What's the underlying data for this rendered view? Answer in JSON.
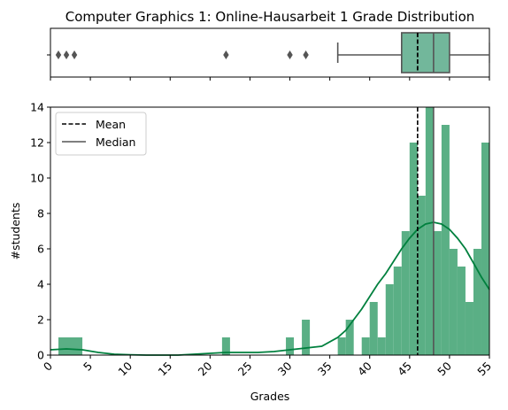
{
  "chart_data": [
    {
      "type": "box",
      "title": "Computer Graphics 1: Online-Hausarbeit 1 Grade Distribution",
      "xlim": [
        0,
        55
      ],
      "box": {
        "whisker_low": 36,
        "q1": 44,
        "median": 48,
        "mean": 46,
        "q3": 50,
        "whisker_high": 55
      },
      "outliers": [
        1,
        2,
        3,
        22,
        30,
        32
      ],
      "colors": {
        "box": "#72b79b",
        "lines": "#555555",
        "mean": "#000000"
      }
    },
    {
      "type": "histogram",
      "xlabel": "Grades",
      "ylabel": "#students",
      "xlim": [
        0,
        55
      ],
      "ylim": [
        0,
        14
      ],
      "xticks": [
        0,
        5,
        10,
        15,
        20,
        25,
        30,
        35,
        40,
        45,
        50,
        55
      ],
      "yticks": [
        0,
        2,
        4,
        6,
        8,
        10,
        12,
        14
      ],
      "bins": [
        {
          "x0": 1,
          "x1": 4,
          "count": 1
        },
        {
          "x0": 21.5,
          "x1": 22.5,
          "count": 1
        },
        {
          "x0": 29.5,
          "x1": 30.5,
          "count": 1
        },
        {
          "x0": 31.5,
          "x1": 32.5,
          "count": 2
        },
        {
          "x0": 36,
          "x1": 37,
          "count": 1
        },
        {
          "x0": 37,
          "x1": 38,
          "count": 2
        },
        {
          "x0": 39,
          "x1": 40,
          "count": 1
        },
        {
          "x0": 40,
          "x1": 41,
          "count": 3
        },
        {
          "x0": 41,
          "x1": 42,
          "count": 1
        },
        {
          "x0": 42,
          "x1": 43,
          "count": 4
        },
        {
          "x0": 43,
          "x1": 44,
          "count": 5
        },
        {
          "x0": 44,
          "x1": 45,
          "count": 7
        },
        {
          "x0": 45,
          "x1": 46,
          "count": 12
        },
        {
          "x0": 46,
          "x1": 47,
          "count": 9
        },
        {
          "x0": 47,
          "x1": 48,
          "count": 14
        },
        {
          "x0": 48,
          "x1": 49,
          "count": 7
        },
        {
          "x0": 49,
          "x1": 50,
          "count": 13
        },
        {
          "x0": 50,
          "x1": 51,
          "count": 6
        },
        {
          "x0": 51,
          "x1": 52,
          "count": 5
        },
        {
          "x0": 52,
          "x1": 53,
          "count": 3
        },
        {
          "x0": 53,
          "x1": 54,
          "count": 6
        },
        {
          "x0": 54,
          "x1": 55,
          "count": 12
        }
      ],
      "kde": {
        "x": [
          0,
          2,
          4,
          6,
          8,
          10,
          12,
          14,
          16,
          18,
          20,
          22,
          24,
          26,
          28,
          30,
          32,
          34,
          36,
          37,
          38,
          39,
          40,
          41,
          42,
          43,
          44,
          45,
          46,
          47,
          48,
          49,
          50,
          51,
          52,
          53,
          54,
          55
        ],
        "y": [
          0.3,
          0.35,
          0.3,
          0.15,
          0.05,
          0.02,
          0.0,
          0.0,
          0.0,
          0.05,
          0.1,
          0.15,
          0.15,
          0.15,
          0.2,
          0.3,
          0.4,
          0.5,
          1.0,
          1.4,
          2.0,
          2.6,
          3.3,
          4.0,
          4.6,
          5.3,
          6.0,
          6.6,
          7.1,
          7.4,
          7.5,
          7.4,
          7.1,
          6.6,
          6.0,
          5.2,
          4.4,
          3.7
        ]
      },
      "mean": 46,
      "median": 48,
      "legend": {
        "position": "upper-left",
        "entries": [
          {
            "label": "Mean",
            "style": "dashed",
            "color": "#000000"
          },
          {
            "label": "Median",
            "style": "solid",
            "color": "#555555"
          }
        ]
      },
      "colors": {
        "bars": "#5aaf85",
        "kde": "#00803e"
      }
    }
  ]
}
